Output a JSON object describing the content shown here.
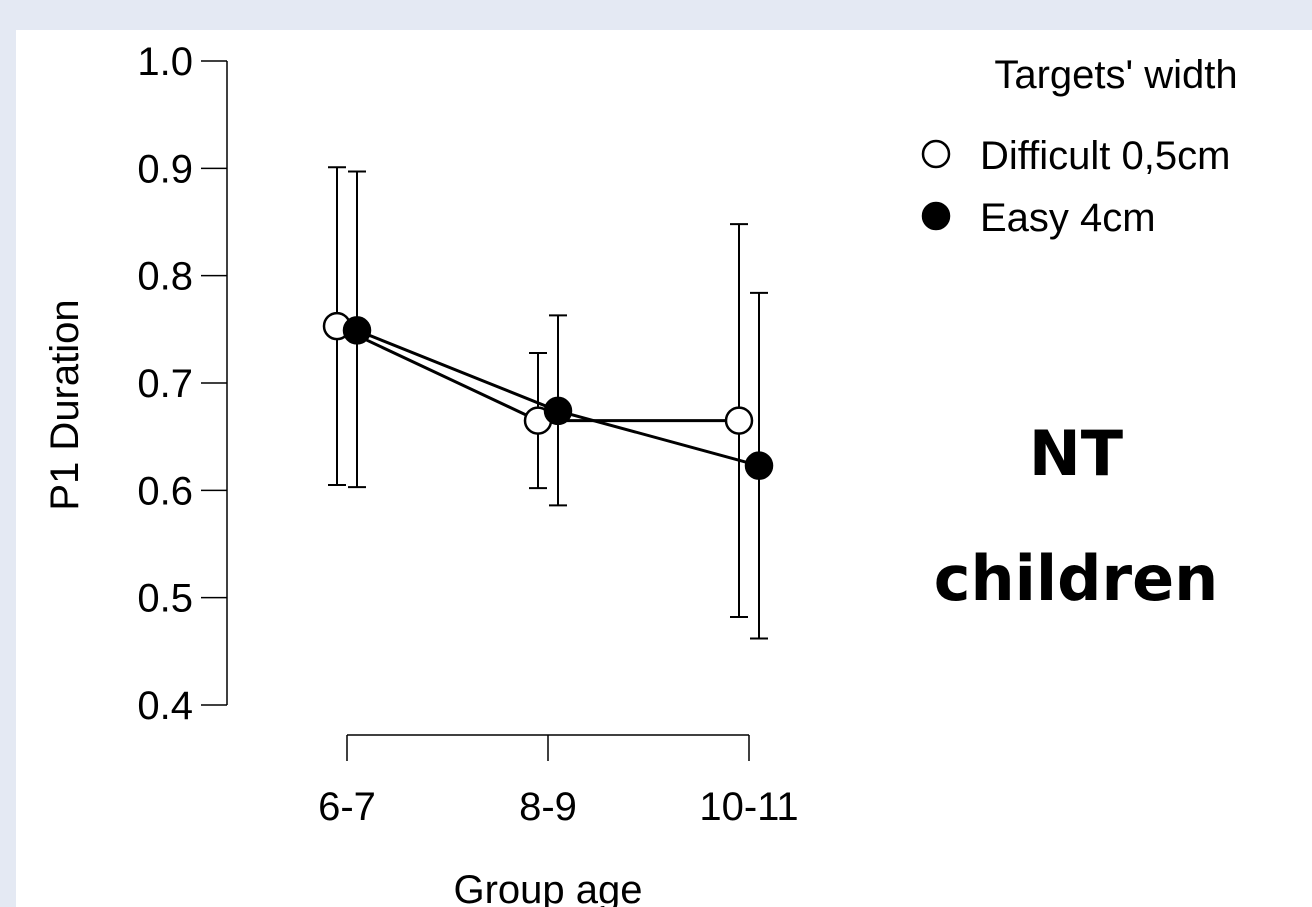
{
  "chart_data": {
    "type": "line",
    "title": "",
    "xlabel": "Group age",
    "ylabel": "P1 Duration",
    "categories": [
      "6-7",
      "8-9",
      "10-11"
    ],
    "ylim": [
      0.4,
      1.0
    ],
    "yticks": [
      "0.4",
      "0.5",
      "0.6",
      "0.7",
      "0.8",
      "0.9",
      "1.0"
    ],
    "grid": false,
    "legend": {
      "title": "Targets' width",
      "placement": "top-right"
    },
    "series": [
      {
        "name": "Difficult 0,5cm",
        "marker": "open-circle",
        "values": [
          0.753,
          0.665,
          0.665
        ],
        "error_low": [
          0.605,
          0.602,
          0.482
        ],
        "error_high": [
          0.901,
          0.728,
          0.848
        ]
      },
      {
        "name": "Easy 4cm",
        "marker": "filled-circle",
        "values": [
          0.749,
          0.674,
          0.623
        ],
        "error_low": [
          0.603,
          0.586,
          0.462
        ],
        "error_high": [
          0.897,
          0.763,
          0.784
        ]
      }
    ],
    "annotation": "NT\nchildren"
  },
  "colors": {
    "background": "#e4e9f3",
    "panel": "#ffffff",
    "ink": "#000000"
  }
}
